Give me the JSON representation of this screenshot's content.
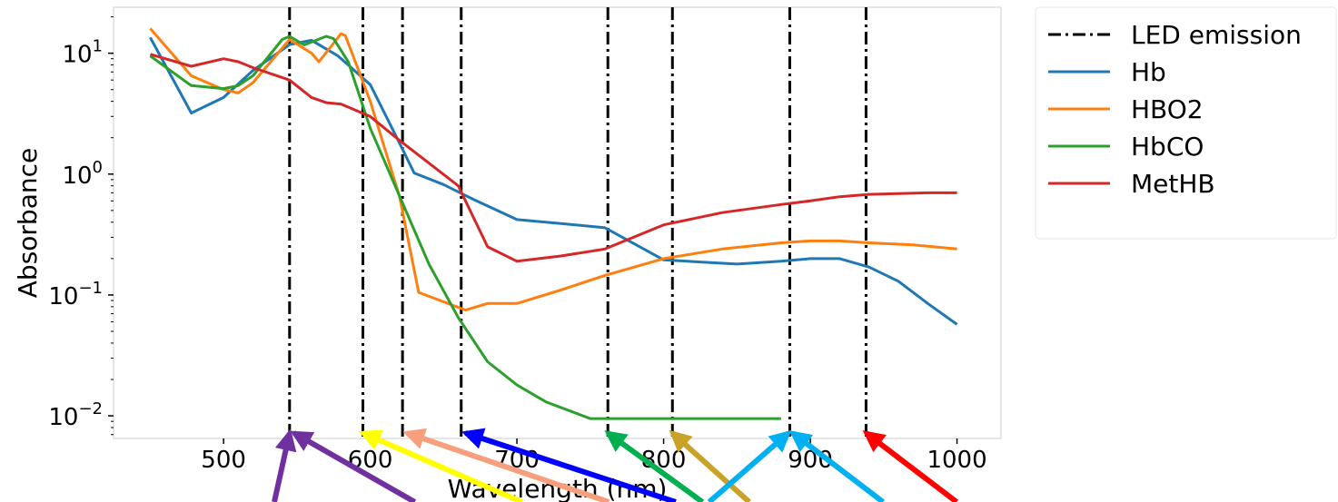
{
  "chart_data": {
    "type": "line",
    "xlabel": "Wavelength (nm)",
    "ylabel": "Absorbance",
    "xlim": [
      425,
      1030
    ],
    "ylim": [
      0.0065,
      24
    ],
    "yscale": "log",
    "x_ticks": [
      500,
      600,
      700,
      800,
      900,
      1000
    ],
    "y_ticks": [
      {
        "value": 0.01,
        "base": "10",
        "exp": "−2"
      },
      {
        "value": 0.1,
        "base": "10",
        "exp": "−1"
      },
      {
        "value": 1,
        "base": "10",
        "exp": "0"
      },
      {
        "value": 10,
        "base": "10",
        "exp": "1"
      }
    ],
    "grid": false,
    "legend_position": "outside-top-right",
    "led_emission": {
      "name": "LED emission",
      "color": "#000000",
      "x": [
        545,
        595,
        622,
        662,
        762,
        806,
        886,
        938
      ]
    },
    "series": [
      {
        "name": "Hb",
        "color": "#1f77b4",
        "x": [
          450,
          478,
          500,
          520,
          545,
          560,
          578,
          600,
          620,
          630,
          650,
          670,
          700,
          730,
          760,
          800,
          850,
          880,
          900,
          920,
          940,
          960,
          980,
          1000
        ],
        "y": [
          13.5,
          3.2,
          4.3,
          7.2,
          11.8,
          12.8,
          9.5,
          5.5,
          1.8,
          1.02,
          0.82,
          0.62,
          0.42,
          0.39,
          0.36,
          0.195,
          0.18,
          0.19,
          0.2,
          0.2,
          0.17,
          0.13,
          0.085,
          0.057
        ]
      },
      {
        "name": "HBO2",
        "color": "#ff7f0e",
        "x": [
          450,
          478,
          500,
          510,
          520,
          545,
          560,
          565,
          577,
          580,
          583,
          600,
          620,
          633,
          665,
          680,
          700,
          730,
          760,
          800,
          840,
          880,
          900,
          920,
          940,
          970,
          1000
        ],
        "y": [
          16,
          6.5,
          5,
          4.7,
          5.7,
          13,
          10,
          8.5,
          13,
          14.5,
          14,
          4,
          0.65,
          0.105,
          0.075,
          0.085,
          0.085,
          0.11,
          0.145,
          0.2,
          0.24,
          0.27,
          0.28,
          0.28,
          0.27,
          0.26,
          0.24
        ]
      },
      {
        "name": "HbCO",
        "color": "#2ca02c",
        "x": [
          450,
          478,
          500,
          510,
          520,
          540,
          545,
          555,
          570,
          575,
          585,
          600,
          640,
          660,
          680,
          700,
          720,
          750,
          760,
          800,
          840,
          880
        ],
        "y": [
          9.5,
          5.4,
          5.1,
          5.4,
          6.5,
          13,
          13.8,
          11.7,
          13.8,
          13.2,
          8.5,
          2.4,
          0.18,
          0.065,
          0.028,
          0.018,
          0.013,
          0.0095,
          0.0095,
          0.0095,
          0.0095,
          0.0095
        ]
      },
      {
        "name": "MetHB",
        "color": "#d62728",
        "x": [
          450,
          478,
          500,
          510,
          520,
          545,
          560,
          570,
          580,
          600,
          620,
          660,
          680,
          700,
          730,
          760,
          800,
          840,
          880,
          900,
          920,
          940,
          960,
          980,
          1000
        ],
        "y": [
          9.8,
          7.8,
          9,
          8.5,
          7.6,
          6,
          4.3,
          3.9,
          3.8,
          3,
          1.9,
          0.8,
          0.25,
          0.19,
          0.21,
          0.24,
          0.38,
          0.48,
          0.56,
          0.6,
          0.65,
          0.68,
          0.69,
          0.7,
          0.7
        ]
      }
    ],
    "arrows": [
      {
        "color": "#7030a0",
        "to_x": 545,
        "from_frac_x": 0.205,
        "from_frac_y": 1.0
      },
      {
        "color": "#7030a0",
        "to_x": 548,
        "from_frac_x": 0.31,
        "from_frac_y": 1.0
      },
      {
        "color": "#ffff00",
        "to_x": 595,
        "from_frac_x": 0.39,
        "from_frac_y": 1.0
      },
      {
        "color": "#f79e7d",
        "to_x": 625,
        "from_frac_x": 0.455,
        "from_frac_y": 1.0
      },
      {
        "color": "#0000ff",
        "to_x": 665,
        "from_frac_x": 0.505,
        "from_frac_y": 1.0
      },
      {
        "color": "#00b050",
        "to_x": 762,
        "from_frac_x": 0.525,
        "from_frac_y": 1.0
      },
      {
        "color": "#c9a227",
        "to_x": 806,
        "from_frac_x": 0.56,
        "from_frac_y": 1.0
      },
      {
        "color": "#00b0f0",
        "to_x": 885,
        "from_frac_x": 0.53,
        "from_frac_y": 1.0
      },
      {
        "color": "#00b0f0",
        "to_x": 888,
        "from_frac_x": 0.66,
        "from_frac_y": 1.0
      },
      {
        "color": "#ff0000",
        "to_x": 938,
        "from_frac_x": 0.715,
        "from_frac_y": 1.0
      }
    ]
  }
}
